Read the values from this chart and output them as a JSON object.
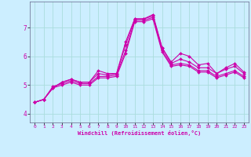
{
  "xlabel": "Windchill (Refroidissement éolien,°C)",
  "background_color": "#cceeff",
  "grid_color": "#aadddd",
  "line_color": "#cc00aa",
  "xlim": [
    -0.5,
    23.5
  ],
  "ylim": [
    3.7,
    7.9
  ],
  "yticks": [
    4,
    5,
    6,
    7
  ],
  "xticks": [
    0,
    1,
    2,
    3,
    4,
    5,
    6,
    7,
    8,
    9,
    10,
    11,
    12,
    13,
    14,
    15,
    16,
    17,
    18,
    19,
    20,
    21,
    22,
    23
  ],
  "series": [
    [
      4.4,
      4.5,
      4.9,
      5.1,
      5.2,
      5.1,
      5.1,
      5.5,
      5.4,
      5.4,
      6.5,
      7.3,
      7.3,
      7.45,
      6.3,
      5.8,
      6.1,
      6.0,
      5.7,
      5.75,
      5.4,
      5.6,
      5.75,
      5.45
    ],
    [
      4.4,
      4.5,
      4.9,
      5.1,
      5.2,
      5.1,
      5.1,
      5.4,
      5.35,
      5.4,
      6.4,
      7.3,
      7.3,
      7.4,
      6.3,
      5.75,
      5.9,
      5.8,
      5.6,
      5.6,
      5.4,
      5.55,
      5.65,
      5.4
    ],
    [
      4.4,
      4.5,
      4.95,
      5.05,
      5.15,
      5.05,
      5.05,
      5.3,
      5.3,
      5.35,
      6.2,
      7.25,
      7.25,
      7.35,
      6.2,
      5.7,
      5.75,
      5.7,
      5.5,
      5.5,
      5.3,
      5.4,
      5.5,
      5.3
    ],
    [
      4.4,
      4.5,
      4.9,
      5.0,
      5.1,
      5.0,
      5.0,
      5.25,
      5.25,
      5.3,
      6.1,
      7.2,
      7.2,
      7.3,
      6.15,
      5.65,
      5.7,
      5.65,
      5.45,
      5.45,
      5.25,
      5.35,
      5.45,
      5.25
    ]
  ]
}
